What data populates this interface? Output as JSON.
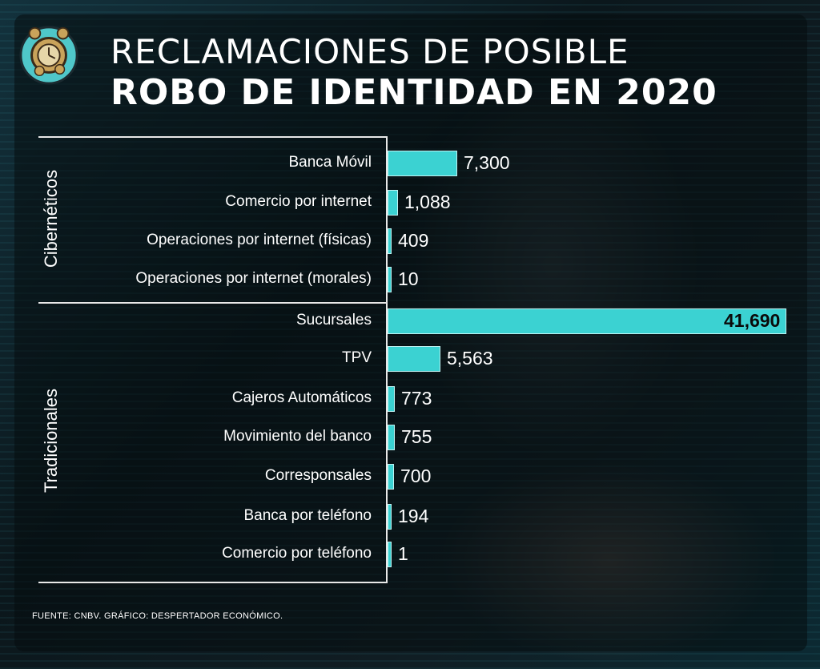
{
  "title_line1": "RECLAMACIONES DE POSIBLE",
  "title_line2": "ROBO DE IDENTIDAD EN 2020",
  "footer": "FUENTE: CNBV.   GRÁFICO: DESPERTADOR ECONÓMICO.",
  "logo_icon": "alarm-clock-coins-icon",
  "colors": {
    "bar": "#3bd2d2",
    "text": "#ffffff",
    "background": "#0e1a20"
  },
  "chart_data": {
    "type": "bar",
    "orientation": "horizontal",
    "title": "RECLAMACIONES DE POSIBLE ROBO DE IDENTIDAD EN 2020",
    "groups": [
      {
        "name": "Cibernéticos",
        "categories": [
          "Banca Móvil",
          "Comercio por internet",
          "Operaciones por internet (físicas)",
          "Operaciones por internet (morales)"
        ]
      },
      {
        "name": "Tradicionales",
        "categories": [
          "Sucursales",
          "TPV",
          "Cajeros Automáticos",
          "Movimiento del banco",
          "Corresponsales",
          "Banca por teléfono",
          "Comercio por teléfono"
        ]
      }
    ],
    "categories": [
      "Banca Móvil",
      "Comercio por internet",
      "Operaciones por internet (físicas)",
      "Operaciones por internet (morales)",
      "Sucursales",
      "TPV",
      "Cajeros Automáticos",
      "Movimiento del banco",
      "Corresponsales",
      "Banca por teléfono",
      "Comercio por teléfono"
    ],
    "values": [
      7300,
      1088,
      409,
      10,
      41690,
      5563,
      773,
      755,
      700,
      194,
      1
    ],
    "value_labels": [
      "7,300",
      "1,088",
      "409",
      "10",
      "41,690",
      "5,563",
      "773",
      "755",
      "700",
      "194",
      "1"
    ],
    "xlim": [
      0,
      41690
    ],
    "grid": false,
    "legend": "none"
  }
}
